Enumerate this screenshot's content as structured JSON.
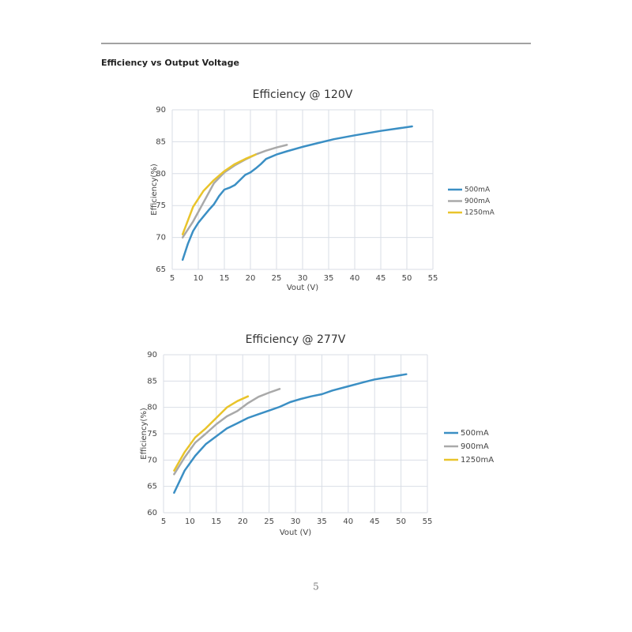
{
  "heading": "Efficiency vs Output Voltage",
  "page_number": "5",
  "chart_data": [
    {
      "type": "line",
      "title": "Efficiency @ 120V",
      "x_label": "Vout (V)",
      "y_label": "Efficiency(%)",
      "xlim": [
        5,
        55
      ],
      "xticks": [
        5,
        10,
        15,
        20,
        25,
        30,
        35,
        40,
        45,
        50,
        55
      ],
      "ylim": [
        65,
        90
      ],
      "yticks": [
        65,
        70,
        75,
        80,
        85,
        90
      ],
      "grid": true,
      "legend": "right",
      "series": [
        {
          "name": "500mA",
          "color": "#3b8fc4",
          "x": [
            7,
            8,
            9,
            10,
            11,
            12,
            13,
            14,
            15,
            16,
            17,
            18,
            19,
            20,
            21,
            22,
            23,
            25,
            27,
            30,
            33,
            36,
            40,
            45,
            51
          ],
          "values": [
            66.5,
            69,
            71,
            72.3,
            73.3,
            74.3,
            75.2,
            76.5,
            77.5,
            77.8,
            78.2,
            79,
            79.8,
            80.2,
            80.8,
            81.5,
            82.3,
            83,
            83.5,
            84.2,
            84.8,
            85.4,
            86,
            86.7,
            87.4
          ]
        },
        {
          "name": "900mA",
          "color": "#a9a9a9",
          "x": [
            7,
            9,
            11,
            13,
            15,
            17,
            19,
            21,
            23,
            25,
            27
          ],
          "values": [
            70,
            72.5,
            75.5,
            78.5,
            80.2,
            81.3,
            82.2,
            83,
            83.6,
            84.1,
            84.5
          ]
        },
        {
          "name": "1250mA",
          "color": "#e9c42b",
          "x": [
            7,
            9,
            11,
            13,
            15,
            17,
            19,
            21
          ],
          "values": [
            70.5,
            74.8,
            77.3,
            79,
            80.4,
            81.5,
            82.3,
            83
          ]
        }
      ]
    },
    {
      "type": "line",
      "title": "Efficiency @ 277V",
      "x_label": "Vout (V)",
      "y_label": "Efficiency(%)",
      "xlim": [
        5,
        55
      ],
      "xticks": [
        5,
        10,
        15,
        20,
        25,
        30,
        35,
        40,
        45,
        50,
        55
      ],
      "ylim": [
        60,
        90
      ],
      "yticks": [
        60,
        65,
        70,
        75,
        80,
        85,
        90
      ],
      "grid": true,
      "legend": "right",
      "series": [
        {
          "name": "500mA",
          "color": "#3b8fc4",
          "x": [
            7,
            9,
            11,
            13,
            15,
            17,
            19,
            21,
            23,
            25,
            27,
            29,
            31,
            33,
            35,
            37,
            40,
            43,
            45,
            48,
            51
          ],
          "values": [
            63.8,
            68,
            70.8,
            73,
            74.5,
            76,
            77,
            78,
            78.7,
            79.4,
            80.1,
            81,
            81.6,
            82.1,
            82.5,
            83.2,
            84,
            84.8,
            85.3,
            85.8,
            86.3
          ]
        },
        {
          "name": "900mA",
          "color": "#a9a9a9",
          "x": [
            7,
            9,
            11,
            13,
            15,
            17,
            19,
            21,
            23,
            25,
            27
          ],
          "values": [
            67.3,
            70.5,
            73.3,
            75,
            76.8,
            78.3,
            79.3,
            80.8,
            82,
            82.8,
            83.5
          ]
        },
        {
          "name": "1250mA",
          "color": "#e9c42b",
          "x": [
            7,
            9,
            11,
            13,
            15,
            17,
            19,
            21
          ],
          "values": [
            68,
            71.5,
            74.3,
            76,
            78,
            80,
            81.2,
            82.1
          ]
        }
      ]
    }
  ]
}
